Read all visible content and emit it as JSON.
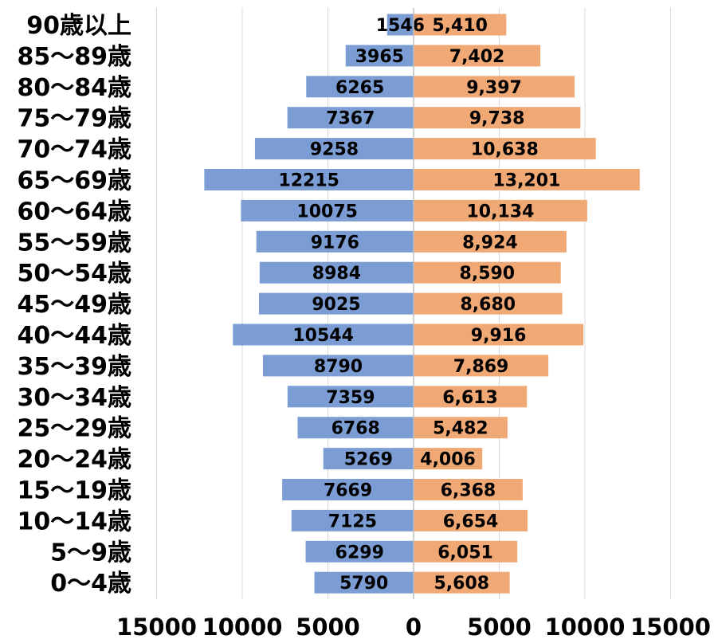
{
  "chart_data": {
    "type": "bar",
    "orientation": "horizontal",
    "layout": "population-pyramid",
    "categories": [
      "90歳以上",
      "85〜89歳",
      "80〜84歳",
      "75〜79歳",
      "70〜74歳",
      "65〜69歳",
      "60〜64歳",
      "55〜59歳",
      "50〜54歳",
      "45〜49歳",
      "40〜44歳",
      "35〜39歳",
      "30〜34歳",
      "25〜29歳",
      "20〜24歳",
      "15〜19歳",
      "10〜14歳",
      "5〜9歳",
      "0〜4歳"
    ],
    "series": [
      {
        "side": "left",
        "color": "#7b9dd4",
        "values": [
          1546,
          3965,
          6265,
          7367,
          9258,
          12215,
          10075,
          9176,
          8984,
          9025,
          10544,
          8790,
          7359,
          6768,
          5269,
          7669,
          7125,
          6299,
          5790
        ],
        "labels": [
          "1546",
          "3965",
          "6265",
          "7367",
          "9258",
          "12215",
          "10075",
          "9176",
          "8984",
          "9025",
          "10544",
          "8790",
          "7359",
          "6768",
          "5269",
          "7669",
          "7125",
          "6299",
          "5790"
        ]
      },
      {
        "side": "right",
        "color": "#f0a875",
        "values": [
          5410,
          7402,
          9397,
          9738,
          10638,
          13201,
          10134,
          8924,
          8590,
          8680,
          9916,
          7869,
          6613,
          5482,
          4006,
          6368,
          6654,
          6051,
          5608
        ],
        "labels": [
          "5,410",
          "7,402",
          "9,397",
          "9,738",
          "10,638",
          "13,201",
          "10,134",
          "8,924",
          "8,590",
          "8,680",
          "9,916",
          "7,869",
          "6,613",
          "5,482",
          "4,006",
          "6,368",
          "6,654",
          "6,051",
          "5,608"
        ]
      }
    ],
    "x_ticks": [
      "15000",
      "10000",
      "5000",
      "0",
      "5000",
      "10000",
      "15000"
    ],
    "xlim": [
      -15000,
      15000
    ],
    "grid": "vertical",
    "legend": "none",
    "title": "",
    "xlabel": "",
    "ylabel": ""
  }
}
